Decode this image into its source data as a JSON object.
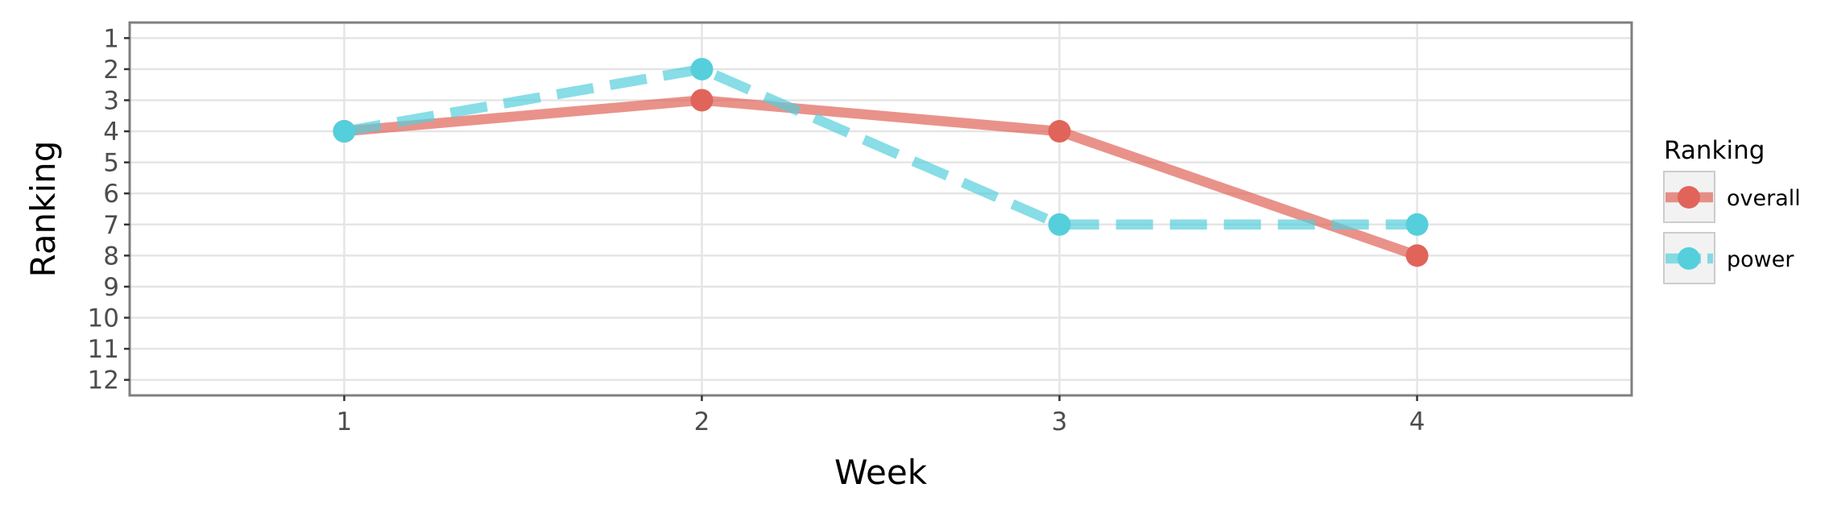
{
  "chart_data": {
    "type": "line",
    "xlabel": "Week",
    "ylabel": "Ranking",
    "x": [
      1,
      2,
      3,
      4
    ],
    "x_ticks": [
      "1",
      "2",
      "3",
      "4"
    ],
    "y_ticks": [
      "1",
      "2",
      "3",
      "4",
      "5",
      "6",
      "7",
      "8",
      "9",
      "10",
      "11",
      "12"
    ],
    "xlim": [
      0.4,
      4.6
    ],
    "ylim": [
      12.5,
      0.5
    ],
    "y_reversed": true,
    "grid": true,
    "legend": {
      "title": "Ranking",
      "position": "right",
      "entries": [
        "overall",
        "power"
      ]
    },
    "series": [
      {
        "name": "overall",
        "values": [
          4,
          3,
          4,
          8
        ],
        "color": "#e06459",
        "line_style": "solid"
      },
      {
        "name": "power",
        "values": [
          4,
          2,
          7,
          7
        ],
        "color": "#55cfdb",
        "line_style": "dashed"
      }
    ]
  }
}
